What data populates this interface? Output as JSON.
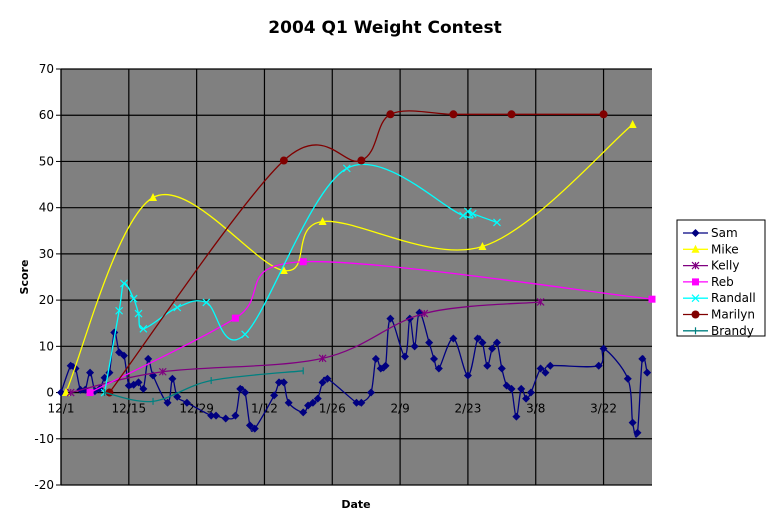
{
  "chart_data": {
    "type": "line",
    "title": "2004 Q1 Weight Contest",
    "xlabel": "Date",
    "ylabel": "Score",
    "xlim": [
      "2003-12-01",
      "2004-04-01"
    ],
    "ylim": [
      -20,
      70
    ],
    "y_ticks": [
      -20,
      -10,
      0,
      10,
      20,
      30,
      40,
      50,
      60,
      70
    ],
    "x_ticks": [
      {
        "date": "2003-12-01",
        "label": "12/1"
      },
      {
        "date": "2003-12-15",
        "label": "12/15"
      },
      {
        "date": "2003-12-29",
        "label": "12/29"
      },
      {
        "date": "2004-01-12",
        "label": "1/12"
      },
      {
        "date": "2004-01-26",
        "label": "1/26"
      },
      {
        "date": "2004-02-09",
        "label": "2/9"
      },
      {
        "date": "2004-02-23",
        "label": "2/23"
      },
      {
        "date": "2004-03-08",
        "label": "3/8"
      },
      {
        "date": "2004-03-22",
        "label": "3/22"
      }
    ],
    "grid": true,
    "smoothed": true,
    "plot_background": "#808080",
    "legend_position": "right",
    "series": [
      {
        "name": "Sam",
        "color": "#000080",
        "marker": "diamond",
        "points": [
          [
            "2003-12-01",
            0
          ],
          [
            "2003-12-03",
            5.8
          ],
          [
            "2003-12-04",
            5.2
          ],
          [
            "2003-12-05",
            0.6
          ],
          [
            "2003-12-06",
            0.6
          ],
          [
            "2003-12-07",
            4.3
          ],
          [
            "2003-12-08",
            0.3
          ],
          [
            "2003-12-09",
            0.8
          ],
          [
            "2003-12-10",
            3.2
          ],
          [
            "2003-12-11",
            4.3
          ],
          [
            "2003-12-12",
            13
          ],
          [
            "2003-12-13",
            8.7
          ],
          [
            "2003-12-14",
            8
          ],
          [
            "2003-12-15",
            1.5
          ],
          [
            "2003-12-16",
            1.7
          ],
          [
            "2003-12-17",
            2.2
          ],
          [
            "2003-12-18",
            0.8
          ],
          [
            "2003-12-19",
            7.3
          ],
          [
            "2003-12-20",
            3.7
          ],
          [
            "2003-12-23",
            -2.2
          ],
          [
            "2003-12-24",
            3
          ],
          [
            "2003-12-25",
            -0.9
          ],
          [
            "2003-12-27",
            -2.2
          ],
          [
            "2004-01-01",
            -5
          ],
          [
            "2004-01-02",
            -5
          ],
          [
            "2004-01-04",
            -5.6
          ],
          [
            "2004-01-06",
            -5
          ],
          [
            "2004-01-07",
            0.8
          ],
          [
            "2004-01-08",
            0
          ],
          [
            "2004-01-09",
            -7.1
          ],
          [
            "2004-01-10",
            -7.8
          ],
          [
            "2004-01-14",
            -0.6
          ],
          [
            "2004-01-15",
            2.2
          ],
          [
            "2004-01-16",
            2.2
          ],
          [
            "2004-01-17",
            -2.2
          ],
          [
            "2004-01-20",
            -4.3
          ],
          [
            "2004-01-21",
            -2.8
          ],
          [
            "2004-01-22",
            -2.2
          ],
          [
            "2004-01-23",
            -1.3
          ],
          [
            "2004-01-24",
            2.2
          ],
          [
            "2004-01-25",
            3
          ],
          [
            "2004-01-31",
            -2.2
          ],
          [
            "2004-02-01",
            -2.2
          ],
          [
            "2004-02-03",
            0
          ],
          [
            "2004-02-04",
            7.3
          ],
          [
            "2004-02-05",
            5.2
          ],
          [
            "2004-02-06",
            5.8
          ],
          [
            "2004-02-07",
            16
          ],
          [
            "2004-02-10",
            7.8
          ],
          [
            "2004-02-11",
            16
          ],
          [
            "2004-02-12",
            10
          ],
          [
            "2004-02-13",
            17.3
          ],
          [
            "2004-02-15",
            10.8
          ],
          [
            "2004-02-16",
            7.3
          ],
          [
            "2004-02-17",
            5.2
          ],
          [
            "2004-02-20",
            11.7
          ],
          [
            "2004-02-23",
            3.7
          ],
          [
            "2004-02-25",
            11.7
          ],
          [
            "2004-02-26",
            10.8
          ],
          [
            "2004-02-27",
            5.8
          ],
          [
            "2004-02-28",
            9.5
          ],
          [
            "2004-02-29",
            10.8
          ],
          [
            "2004-03-01",
            5.2
          ],
          [
            "2004-03-02",
            1.5
          ],
          [
            "2004-03-03",
            0.8
          ],
          [
            "2004-03-04",
            -5.2
          ],
          [
            "2004-03-05",
            0.8
          ],
          [
            "2004-03-06",
            -1.3
          ],
          [
            "2004-03-07",
            0
          ],
          [
            "2004-03-09",
            5.2
          ],
          [
            "2004-03-10",
            4.3
          ],
          [
            "2004-03-11",
            5.8
          ],
          [
            "2004-03-21",
            5.8
          ],
          [
            "2004-03-22",
            9.5
          ],
          [
            "2004-03-27",
            3
          ],
          [
            "2004-03-28",
            -6.5
          ],
          [
            "2004-03-29",
            -8.7
          ],
          [
            "2004-03-30",
            7.3
          ],
          [
            "2004-03-31",
            4.3
          ]
        ]
      },
      {
        "name": "Mike",
        "color": "#FFFF00",
        "marker": "triangle",
        "points": [
          [
            "2003-12-02",
            0
          ],
          [
            "2003-12-20",
            42.2
          ],
          [
            "2004-01-16",
            26.4
          ],
          [
            "2004-01-24",
            37
          ],
          [
            "2004-02-26",
            31.6
          ],
          [
            "2004-03-28",
            58
          ]
        ]
      },
      {
        "name": "Kelly",
        "color": "#800080",
        "marker": "asterisk",
        "points": [
          [
            "2003-12-03",
            0
          ],
          [
            "2003-12-22",
            4.5
          ],
          [
            "2004-01-24",
            7.4
          ],
          [
            "2004-02-14",
            17.1
          ],
          [
            "2004-03-09",
            19.6
          ]
        ]
      },
      {
        "name": "Reb",
        "color": "#FF00FF",
        "marker": "square",
        "points": [
          [
            "2003-12-07",
            0
          ],
          [
            "2004-01-06",
            16.1
          ],
          [
            "2004-01-20",
            28.3
          ],
          [
            "2004-04-01",
            20.2
          ]
        ]
      },
      {
        "name": "Randall",
        "color": "#00FFFF",
        "marker": "x",
        "points": [
          [
            "2003-12-10",
            0
          ],
          [
            "2003-12-13",
            17.7
          ],
          [
            "2003-12-14",
            23.6
          ],
          [
            "2003-12-16",
            20.3
          ],
          [
            "2003-12-17",
            17.1
          ],
          [
            "2003-12-18",
            13.8
          ],
          [
            "2003-12-25",
            18.4
          ],
          [
            "2003-12-31",
            19.5
          ],
          [
            "2004-01-08",
            12.6
          ],
          [
            "2004-01-29",
            48.5
          ],
          [
            "2004-02-22",
            38.3
          ],
          [
            "2004-02-23",
            39.2
          ],
          [
            "2004-02-24",
            38.7
          ],
          [
            "2004-02-29",
            36.8
          ]
        ]
      },
      {
        "name": "Marilyn",
        "color": "#800000",
        "marker": "circle",
        "points": [
          [
            "2003-12-11",
            0
          ],
          [
            "2004-01-16",
            50.2
          ],
          [
            "2004-02-01",
            50.2
          ],
          [
            "2004-02-07",
            60.2
          ],
          [
            "2004-02-20",
            60.2
          ],
          [
            "2004-03-03",
            60.2
          ],
          [
            "2004-03-22",
            60.2
          ]
        ]
      },
      {
        "name": "Brandy",
        "color": "#008080",
        "marker": "plus",
        "points": [
          [
            "2003-12-10",
            0
          ],
          [
            "2003-12-20",
            -1.9
          ],
          [
            "2004-01-01",
            2.6
          ],
          [
            "2004-01-20",
            4.7
          ]
        ]
      }
    ]
  }
}
